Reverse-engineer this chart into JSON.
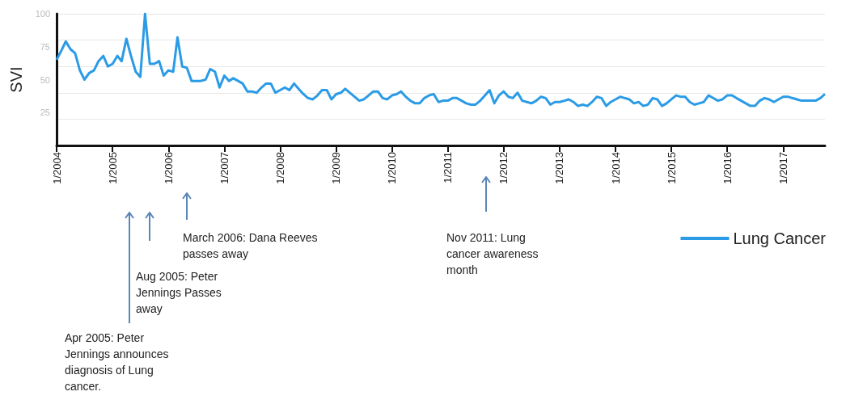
{
  "chart_data": {
    "type": "line",
    "ylabel": "SVI",
    "legend": "bottom right",
    "grid": "y",
    "marker": "none",
    "line_style": "solid",
    "ylim": [
      0,
      100
    ],
    "yticks": [
      25,
      50,
      75,
      100
    ],
    "xlim": [
      "2004-01",
      "2017-10"
    ],
    "xticks": [
      {
        "value": "2004-01",
        "label": "1/2004"
      },
      {
        "value": "2005-01",
        "label": "1/2005"
      },
      {
        "value": "2006-01",
        "label": "1/2006"
      },
      {
        "value": "2007-01",
        "label": "1/2007"
      },
      {
        "value": "2008-01",
        "label": "1/2008"
      },
      {
        "value": "2009-01",
        "label": "1/2009"
      },
      {
        "value": "2010-01",
        "label": "1/2010"
      },
      {
        "value": "2011-01",
        "label": "1/2011"
      },
      {
        "value": "2012-01",
        "label": "1/2012"
      },
      {
        "value": "2013-01",
        "label": "1/2013"
      },
      {
        "value": "2014-01",
        "label": "1/2014"
      },
      {
        "value": "2015-01",
        "label": "1/2015"
      },
      {
        "value": "2016-01",
        "label": "1/2016"
      },
      {
        "value": "2017-01",
        "label": "1/2017"
      }
    ],
    "x": [
      "2004-01",
      "2004-02",
      "2004-03",
      "2004-04",
      "2004-05",
      "2004-06",
      "2004-07",
      "2004-08",
      "2004-09",
      "2004-10",
      "2004-11",
      "2004-12",
      "2005-01",
      "2005-02",
      "2005-03",
      "2005-04",
      "2005-05",
      "2005-06",
      "2005-07",
      "2005-08",
      "2005-09",
      "2005-10",
      "2005-11",
      "2005-12",
      "2006-01",
      "2006-02",
      "2006-03",
      "2006-04",
      "2006-05",
      "2006-06",
      "2006-07",
      "2006-08",
      "2006-09",
      "2006-10",
      "2006-11",
      "2006-12",
      "2007-01",
      "2007-02",
      "2007-03",
      "2007-04",
      "2007-05",
      "2007-06",
      "2007-07",
      "2007-08",
      "2007-09",
      "2007-10",
      "2007-11",
      "2007-12",
      "2008-01",
      "2008-02",
      "2008-03",
      "2008-04",
      "2008-05",
      "2008-06",
      "2008-07",
      "2008-08",
      "2008-09",
      "2008-10",
      "2008-11",
      "2008-12",
      "2009-01",
      "2009-02",
      "2009-03",
      "2009-04",
      "2009-05",
      "2009-06",
      "2009-07",
      "2009-08",
      "2009-09",
      "2009-10",
      "2009-11",
      "2009-12",
      "2010-01",
      "2010-02",
      "2010-03",
      "2010-04",
      "2010-05",
      "2010-06",
      "2010-07",
      "2010-08",
      "2010-09",
      "2010-10",
      "2010-11",
      "2010-12",
      "2011-01",
      "2011-02",
      "2011-03",
      "2011-04",
      "2011-05",
      "2011-06",
      "2011-07",
      "2011-08",
      "2011-09",
      "2011-10",
      "2011-11",
      "2011-12",
      "2012-01",
      "2012-02",
      "2012-03",
      "2012-04",
      "2012-05",
      "2012-06",
      "2012-07",
      "2012-08",
      "2012-09",
      "2012-10",
      "2012-11",
      "2012-12",
      "2013-01",
      "2013-02",
      "2013-03",
      "2013-04",
      "2013-05",
      "2013-06",
      "2013-07",
      "2013-08",
      "2013-09",
      "2013-10",
      "2013-11",
      "2013-12",
      "2014-01",
      "2014-02",
      "2014-03",
      "2014-04",
      "2014-05",
      "2014-06",
      "2014-07",
      "2014-08",
      "2014-09",
      "2014-10",
      "2014-11",
      "2014-12",
      "2015-01",
      "2015-02",
      "2015-03",
      "2015-04",
      "2015-05",
      "2015-06",
      "2015-07",
      "2015-08",
      "2015-09",
      "2015-10",
      "2015-11",
      "2015-12",
      "2016-01",
      "2016-02",
      "2016-03",
      "2016-04",
      "2016-05",
      "2016-06",
      "2016-07",
      "2016-08",
      "2016-09",
      "2016-10",
      "2016-11",
      "2016-12",
      "2017-01",
      "2017-02",
      "2017-03",
      "2017-04",
      "2017-05",
      "2017-06",
      "2017-07",
      "2017-08",
      "2017-09",
      "2017-10"
    ],
    "series": [
      {
        "name": "Lung Cancer",
        "color": "#2b9be6",
        "values": [
          65,
          72,
          79,
          73,
          70,
          57,
          50,
          55,
          57,
          64,
          68,
          60,
          62,
          68,
          64,
          81,
          68,
          56,
          52,
          100,
          62,
          62,
          64,
          53,
          57,
          56,
          82,
          60,
          59,
          49,
          49,
          49,
          50,
          58,
          56,
          44,
          53,
          49,
          51,
          49,
          47,
          41,
          41,
          40,
          44,
          47,
          47,
          40,
          42,
          44,
          42,
          47,
          43,
          39,
          36,
          35,
          38,
          42,
          42,
          35,
          39,
          40,
          43,
          40,
          37,
          34,
          35,
          38,
          41,
          41,
          36,
          35,
          38,
          39,
          41,
          37,
          34,
          32,
          32,
          36,
          38,
          39,
          33,
          34,
          34,
          36,
          36,
          34,
          32,
          31,
          31,
          34,
          38,
          42,
          32,
          38,
          41,
          37,
          36,
          40,
          34,
          33,
          32,
          34,
          37,
          36,
          31,
          33,
          33,
          34,
          35,
          33,
          30,
          31,
          30,
          33,
          37,
          36,
          30,
          33,
          35,
          37,
          36,
          35,
          32,
          33,
          30,
          31,
          36,
          35,
          30,
          32,
          35,
          38,
          37,
          37,
          33,
          31,
          32,
          33,
          38,
          36,
          34,
          35,
          38,
          38,
          36,
          34,
          32,
          30,
          30,
          34,
          36,
          35,
          33,
          35,
          37,
          37,
          36,
          35,
          34,
          34,
          34,
          34,
          36,
          39
        ]
      }
    ],
    "annotations": [
      "Apr 2005: Peter Jennings announces diagnosis of Lung cancer.",
      "Aug 2005: Peter Jennings Passes away",
      "March 2006: Dana Reeves passes away",
      "Nov 2011: Lung cancer awareness month"
    ]
  }
}
